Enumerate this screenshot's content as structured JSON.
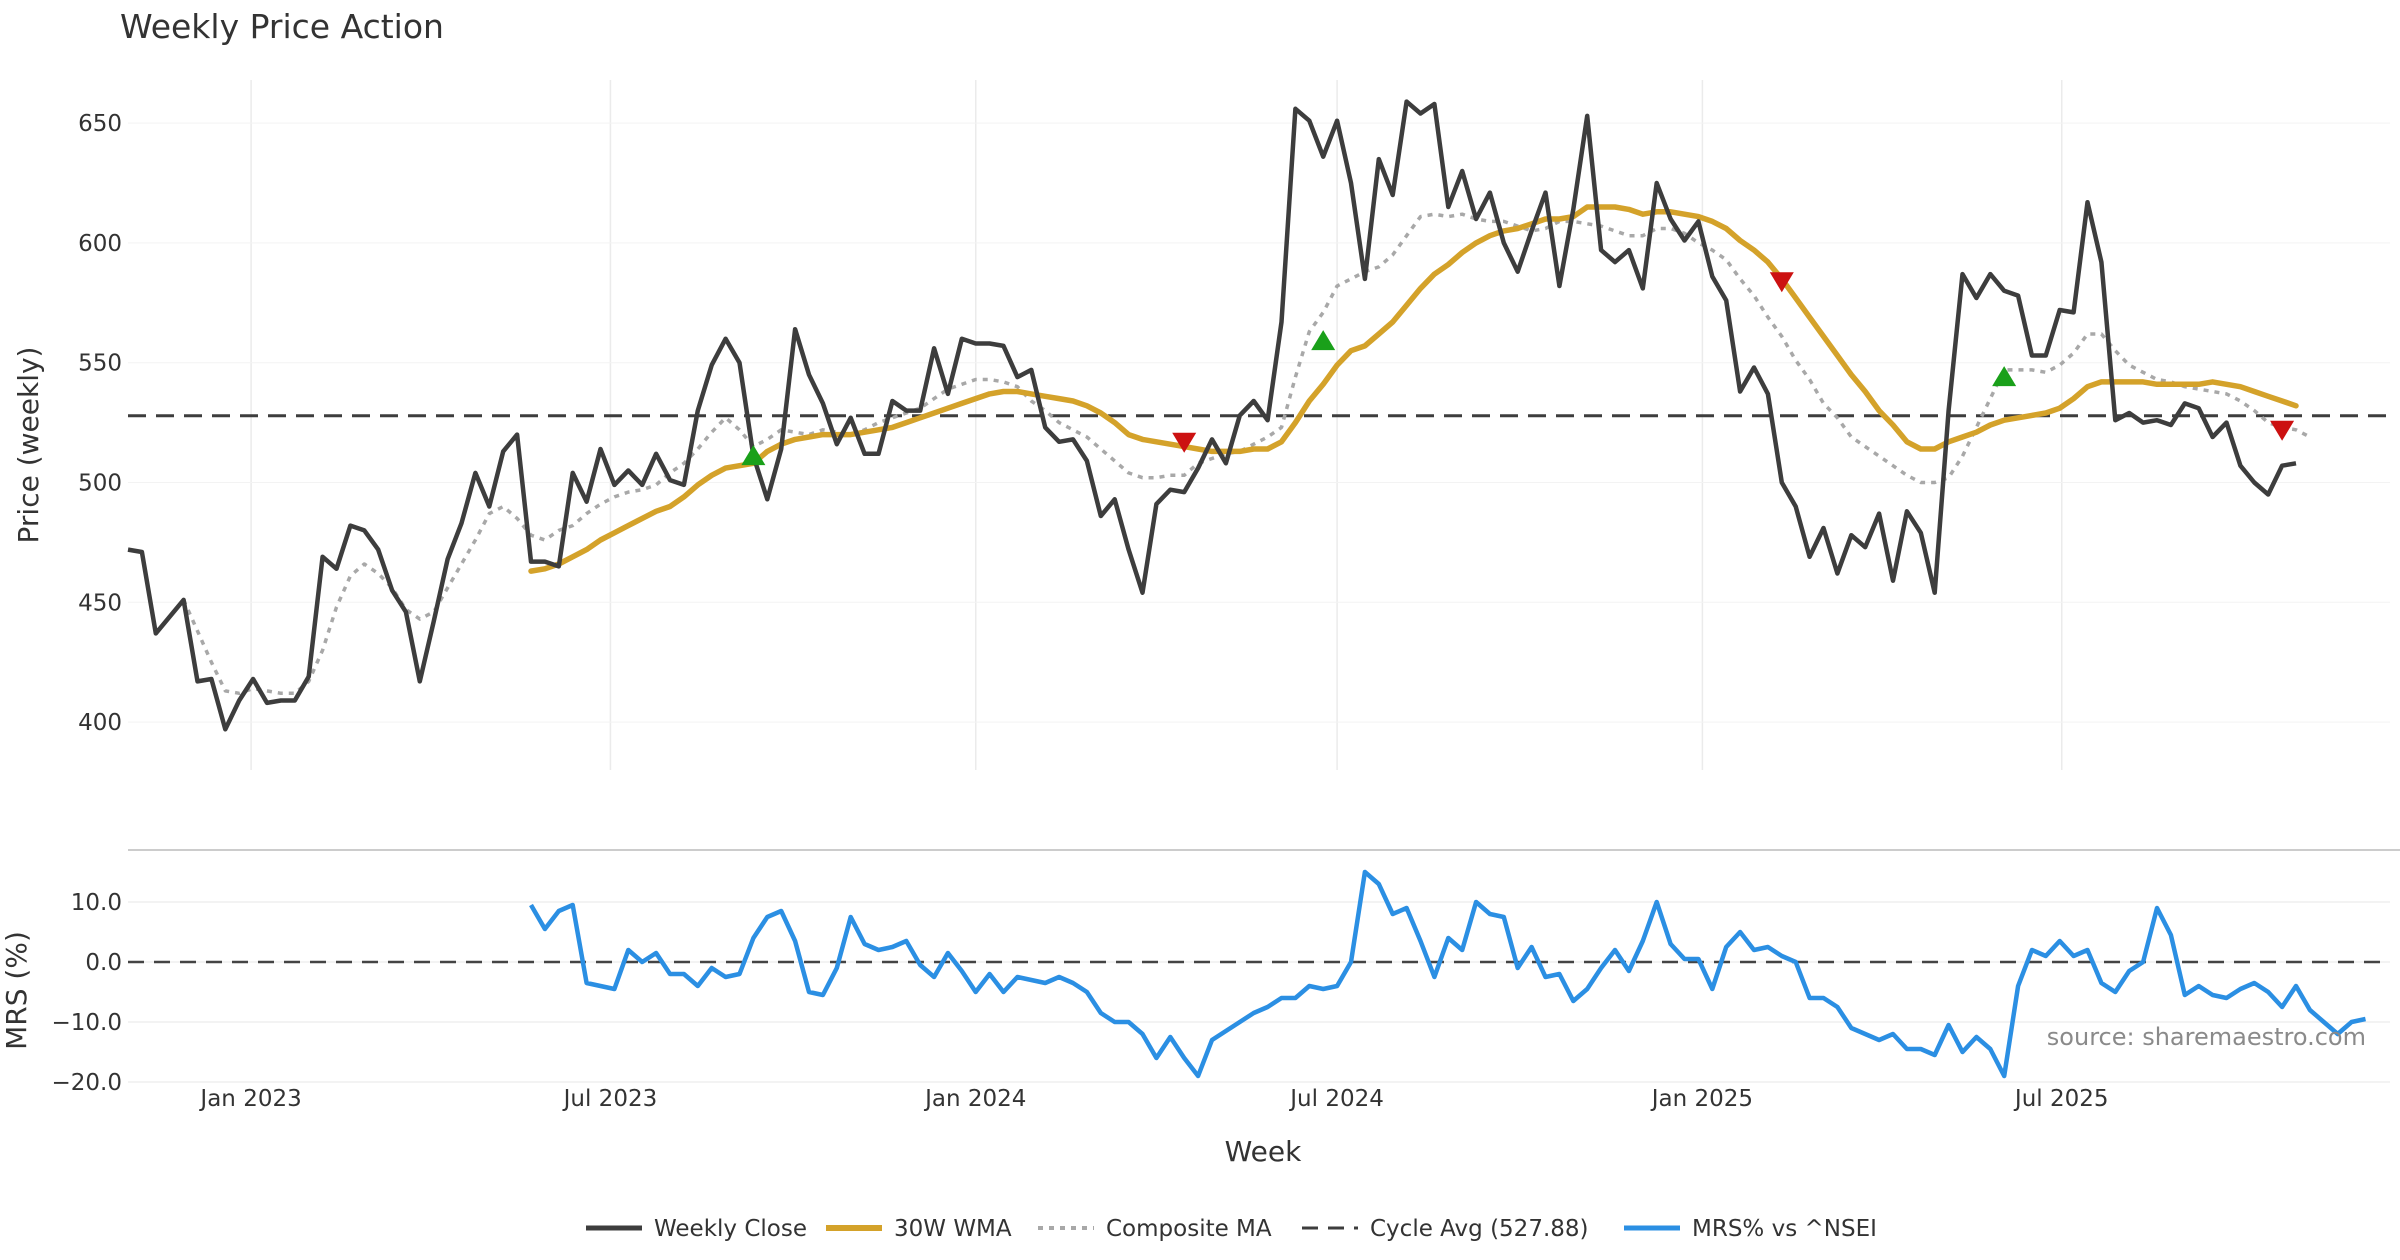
{
  "chart_data": {
    "type": "line",
    "title": "Weekly Price Action",
    "xlabel": "Week",
    "source": "source: sharemaestro.com",
    "x_start": "2022-10-31",
    "x_end": "2025-10-27",
    "x_ticks": [
      {
        "date": "2023-01-01",
        "label": "Jan 2023"
      },
      {
        "date": "2023-07-01",
        "label": "Jul 2023"
      },
      {
        "date": "2024-01-01",
        "label": "Jan 2024"
      },
      {
        "date": "2024-07-01",
        "label": "Jul 2024"
      },
      {
        "date": "2025-01-01",
        "label": "Jan 2025"
      },
      {
        "date": "2025-07-01",
        "label": "Jul 2025"
      }
    ],
    "price_panel": {
      "ylabel": "Price (weekly)",
      "ylim": [
        380,
        668
      ],
      "yticks": [
        400,
        450,
        500,
        550,
        600,
        650
      ],
      "cycle_avg": 527.88,
      "close": [
        472,
        471,
        437,
        444,
        451,
        417,
        418,
        397,
        409,
        418,
        408,
        409,
        409,
        419,
        469,
        464,
        482,
        480,
        472,
        455,
        446,
        417,
        442,
        468,
        483,
        504,
        490,
        513,
        520,
        467,
        467,
        465,
        504,
        492,
        514,
        499,
        505,
        499,
        512,
        501,
        499,
        530,
        549,
        560,
        550,
        511,
        493,
        514,
        564,
        545,
        533,
        516,
        527,
        512,
        512,
        534,
        530,
        530,
        556,
        537,
        560,
        558,
        558,
        557,
        544,
        547,
        523,
        517,
        518,
        509,
        486,
        493,
        472,
        454,
        491,
        497,
        496,
        506,
        518,
        508,
        528,
        534,
        526,
        567,
        656,
        651,
        636,
        651,
        625,
        585,
        635,
        620,
        659,
        654,
        658,
        615,
        630,
        610,
        621,
        600,
        588,
        605,
        621,
        582,
        614,
        653,
        597,
        592,
        597,
        581,
        625,
        610,
        601,
        609,
        586,
        576,
        538,
        548,
        537,
        500,
        490,
        469,
        481,
        462,
        478,
        473,
        487,
        459,
        488,
        479,
        454,
        530,
        587,
        577,
        587,
        580,
        578,
        553,
        553,
        572,
        571,
        617,
        592,
        526,
        529,
        525,
        526,
        524,
        533,
        531,
        519,
        525,
        507,
        500,
        495,
        507,
        508
      ],
      "wma30": [
        null,
        null,
        null,
        null,
        null,
        null,
        null,
        null,
        null,
        null,
        null,
        null,
        null,
        null,
        null,
        null,
        null,
        null,
        null,
        null,
        null,
        null,
        null,
        null,
        null,
        null,
        null,
        null,
        null,
        463,
        464,
        466,
        469,
        472,
        476,
        479,
        482,
        485,
        488,
        490,
        494,
        499,
        503,
        506,
        507,
        508,
        513,
        516,
        518,
        519,
        520,
        520,
        520,
        521,
        522,
        523,
        525,
        527,
        529,
        531,
        533,
        535,
        537,
        538,
        538,
        537,
        536,
        535,
        534,
        532,
        529,
        525,
        520,
        518,
        517,
        516,
        515,
        514,
        513,
        513,
        513,
        514,
        514,
        517,
        525,
        534,
        541,
        549,
        555,
        557,
        562,
        567,
        574,
        581,
        587,
        591,
        596,
        600,
        603,
        605,
        606,
        608,
        610,
        610,
        611,
        615,
        615,
        615,
        614,
        612,
        613,
        613,
        612,
        611,
        609,
        606,
        601,
        597,
        592,
        585,
        577,
        569,
        561,
        553,
        545,
        538,
        530,
        524,
        517,
        514,
        514,
        517,
        519,
        521,
        524,
        526,
        527,
        528,
        529,
        531,
        535,
        540,
        542,
        542,
        542,
        542,
        541,
        541,
        541,
        541,
        542,
        541,
        540,
        538,
        536,
        534,
        532
      ],
      "composite": [
        null,
        null,
        null,
        null,
        451,
        438,
        425,
        413,
        412,
        414,
        413,
        412,
        412,
        417,
        430,
        448,
        461,
        466,
        462,
        456,
        447,
        443,
        446,
        456,
        466,
        476,
        487,
        490,
        485,
        478,
        476,
        480,
        482,
        487,
        491,
        494,
        496,
        497,
        499,
        504,
        508,
        514,
        521,
        527,
        522,
        515,
        518,
        522,
        521,
        520,
        522,
        521,
        520,
        522,
        525,
        527,
        529,
        531,
        535,
        539,
        541,
        543,
        543,
        542,
        540,
        534,
        530,
        525,
        522,
        519,
        514,
        509,
        504,
        502,
        502,
        503,
        503,
        508,
        510,
        512,
        513,
        516,
        519,
        523,
        544,
        563,
        571,
        582,
        585,
        588,
        590,
        595,
        603,
        611,
        612,
        611,
        612,
        610,
        609,
        609,
        607,
        605,
        606,
        609,
        609,
        608,
        607,
        605,
        603,
        603,
        606,
        606,
        604,
        600,
        597,
        593,
        585,
        578,
        569,
        561,
        551,
        543,
        533,
        527,
        519,
        515,
        511,
        507,
        503,
        500,
        500,
        502,
        511,
        523,
        535,
        547,
        547,
        547,
        546,
        549,
        554,
        562,
        562,
        555,
        549,
        546,
        543,
        542,
        540,
        539,
        538,
        537,
        534,
        530,
        525,
        523,
        522,
        519
      ],
      "buy_signals": [
        {
          "date": "2023-09-11",
          "price": 511
        },
        {
          "date": "2024-06-24",
          "price": 559
        },
        {
          "date": "2025-06-02",
          "price": 544
        }
      ],
      "sell_signals": [
        {
          "date": "2024-04-15",
          "price": 517
        },
        {
          "date": "2025-02-10",
          "price": 584
        },
        {
          "date": "2025-10-20",
          "price": 522
        }
      ]
    },
    "mrs_panel": {
      "ylabel": "MRS (%)",
      "ylim": [
        -20.5,
        17
      ],
      "yticks": [
        10.0,
        0.0,
        -10.0,
        -20.0
      ],
      "ytick_labels": [
        "10.0",
        "0.0",
        "−10.0",
        "−20.0"
      ],
      "zero_line": 0.0,
      "mrs": [
        null,
        null,
        null,
        null,
        null,
        null,
        null,
        null,
        null,
        null,
        null,
        null,
        null,
        null,
        null,
        null,
        null,
        null,
        null,
        null,
        null,
        null,
        null,
        null,
        null,
        null,
        null,
        null,
        null,
        9.5,
        5.5,
        8.5,
        9.5,
        -3.5,
        -4.0,
        -4.5,
        2.0,
        0.0,
        1.5,
        -2.0,
        -2.0,
        -4.0,
        -1.0,
        -2.5,
        -2.0,
        4.0,
        7.5,
        8.5,
        3.5,
        -5.0,
        -5.5,
        -1.0,
        7.5,
        3.0,
        2.0,
        2.5,
        3.5,
        -0.5,
        -2.5,
        1.5,
        -1.5,
        -5.0,
        -2.0,
        -5.0,
        -2.5,
        -3.0,
        -3.5,
        -2.5,
        -3.5,
        -5.0,
        -8.5,
        -10.0,
        -10.0,
        -12.0,
        -16.0,
        -12.5,
        -16.0,
        -19.0,
        -13.0,
        -11.5,
        -10.0,
        -8.5,
        -7.5,
        -6.0,
        -6.0,
        -4.0,
        -4.5,
        -4.0,
        0.0,
        15.0,
        13.0,
        8.0,
        9.0,
        3.5,
        -2.5,
        4.0,
        2.0,
        10.0,
        8.0,
        7.5,
        -1.0,
        2.5,
        -2.5,
        -2.0,
        -6.5,
        -4.5,
        -1.0,
        2.0,
        -1.5,
        3.5,
        10.0,
        3.0,
        0.5,
        0.5,
        -4.5,
        2.5,
        5.0,
        2.0,
        2.5,
        1.0,
        0.0,
        -6.0,
        -6.0,
        -7.5,
        -11.0,
        -12.0,
        -13.0,
        -12.0,
        -14.5,
        -14.5,
        -15.5,
        -10.5,
        -15.0,
        -12.5,
        -14.5,
        -19.0,
        -4.0,
        2.0,
        1.0,
        3.5,
        1.0,
        2.0,
        -3.5,
        -5.0,
        -1.5,
        0.0,
        9.0,
        4.5,
        -5.5,
        -4.0,
        -5.5,
        -6.0,
        -4.5,
        -3.5,
        -5.0,
        -7.5,
        -4.0,
        -8.0,
        -10.0,
        -12.0,
        -10.0,
        -9.5
      ]
    },
    "legend": [
      {
        "name": "Weekly Close",
        "style": "solid",
        "color": "#3d3d3d"
      },
      {
        "name": "30W WMA",
        "style": "solid",
        "color": "#d4a22a"
      },
      {
        "name": "Composite MA",
        "style": "dotted",
        "color": "#a8a8a8"
      },
      {
        "name": "Cycle Avg (527.88)",
        "style": "dashed",
        "color": "#3d3d3d"
      },
      {
        "name": "MRS% vs ^NSEI",
        "style": "solid",
        "color": "#2b8fe3"
      }
    ],
    "colors": {
      "close": "#3d3d3d",
      "wma": "#d4a22a",
      "composite": "#a8a8a8",
      "cycle": "#3d3d3d",
      "mrs": "#2b8fe3",
      "buy": "#1aa01a",
      "sell": "#cc1111",
      "grid": "#ebebeb"
    }
  }
}
